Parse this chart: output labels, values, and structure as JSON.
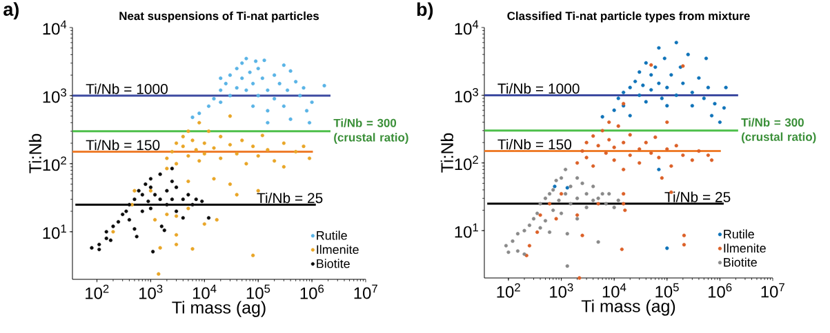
{
  "chart_data": [
    {
      "type": "scatter",
      "title": "Neat suspensions of Ti-nat particles",
      "xlabel": "Ti mass (ag)",
      "ylabel": "Ti:Nb",
      "annotations": [
        "a)"
      ],
      "log": "xy",
      "legend": "bottom right",
      "xlim": [
        35,
        10000000
      ],
      "ylim": [
        2,
        10000
      ],
      "xticks": [
        {
          "value": 100,
          "label": "10$^{2}$"
        },
        {
          "value": 1000,
          "label": "10$^{3}$"
        },
        {
          "value": 10000,
          "label": "10$^{4}$"
        },
        {
          "value": 100000,
          "label": "10$^{5}$"
        },
        {
          "value": 1000000,
          "label": "10$^{6}$"
        },
        {
          "value": 10000000,
          "label": "10$^{7}$"
        }
      ],
      "yticks": [
        {
          "value": 10,
          "label": "10$^{1}$"
        },
        {
          "value": 100,
          "label": "10$^{2}$"
        },
        {
          "value": 1000,
          "label": "10$^{3}$"
        },
        {
          "value": 10000,
          "label": "10$^{4}$"
        }
      ],
      "ref_lines": [
        {
          "axis": "y",
          "value": 1000,
          "label": "Ti/Nb = 1000",
          "color": "#3c4aa0"
        },
        {
          "axis": "y",
          "value": 300,
          "label": "Ti/Nb = 300 (crustal ratio)",
          "color": "#4dbf4a"
        },
        {
          "axis": "y",
          "value": 150,
          "label": "Ti/Nb = 150",
          "color": "#ee7d2c"
        },
        {
          "axis": "y",
          "value": 25,
          "label": "Ti/Nb = 25",
          "color": "#000000"
        }
      ],
      "series": [
        {
          "name": "Rutile",
          "color": "#5ab4e6",
          "x": [
            12000,
            15000,
            20000,
            20000,
            25000,
            30000,
            30000,
            40000,
            40000,
            50000,
            50000,
            60000,
            60000,
            70000,
            80000,
            80000,
            90000,
            100000,
            100000,
            120000,
            130000,
            150000,
            150000,
            200000,
            200000,
            250000,
            300000,
            300000,
            350000,
            400000,
            400000,
            500000,
            600000,
            700000,
            800000,
            900000,
            1000000,
            1700000,
            8000,
            6000,
            150000,
            20000
          ],
          "values": [
            700,
            900,
            1200,
            800,
            1500,
            1000,
            2000,
            1300,
            2500,
            1800,
            3000,
            3500,
            1200,
            2200,
            1500,
            700,
            3200,
            1000,
            2500,
            1800,
            3300,
            1200,
            600,
            2000,
            900,
            1500,
            2800,
            700,
            1200,
            2300,
            450,
            1600,
            1000,
            1300,
            600,
            400,
            800,
            1400,
            550,
            480,
            400,
            1800
          ]
        },
        {
          "name": "Ilmenite",
          "color": "#e9a628",
          "x": [
            2000,
            2500,
            3000,
            3000,
            4000,
            4000,
            5000,
            5000,
            6000,
            7000,
            8000,
            8000,
            10000,
            10000,
            12000,
            15000,
            20000,
            20000,
            30000,
            30000,
            40000,
            50000,
            60000,
            80000,
            100000,
            120000,
            150000,
            200000,
            300000,
            300000,
            500000,
            700000,
            900000,
            15000,
            30000,
            100000,
            40000,
            5000,
            2000,
            1000,
            500,
            1200,
            2000,
            3000,
            5000,
            10000,
            17000,
            3000,
            3000,
            1500,
            6000,
            80000,
            1400,
            200,
            450
          ],
          "values": [
            120,
            150,
            200,
            100,
            180,
            250,
            130,
            300,
            220,
            160,
            400,
            110,
            200,
            140,
            300,
            170,
            120,
            250,
            190,
            500,
            140,
            220,
            100,
            180,
            130,
            260,
            160,
            110,
            200,
            90,
            150,
            180,
            120,
            60,
            50,
            40,
            35,
            55,
            85,
            40,
            40,
            15,
            18,
            17,
            22,
            13,
            15,
            9,
            6.5,
            5.8,
            5.6,
            4.5,
            2.4,
            10,
            25
          ]
        },
        {
          "name": "Biotite",
          "color": "#0d0d0d",
          "x": [
            80,
            110,
            110,
            150,
            150,
            180,
            200,
            250,
            300,
            350,
            400,
            400,
            500,
            500,
            550,
            600,
            700,
            700,
            800,
            900,
            1000,
            1000,
            1000,
            1100,
            1200,
            1500,
            1500,
            1600,
            2000,
            2000,
            2500,
            2500,
            3000,
            3000,
            4000,
            4000,
            5000,
            6000,
            7000,
            9000,
            12000,
            2500,
            1800
          ],
          "values": [
            5.8,
            5.5,
            6.5,
            8,
            10,
            7.5,
            12,
            14,
            18,
            20,
            25,
            15,
            30,
            11,
            8.5,
            40,
            35,
            20,
            50,
            28,
            60,
            45,
            22,
            5.1,
            35,
            30,
            70,
            12,
            25,
            40,
            55,
            30,
            20,
            45,
            30,
            16,
            35,
            25,
            30,
            28,
            16,
            85,
            10.5
          ]
        }
      ]
    },
    {
      "type": "scatter",
      "title": "Classified Ti-nat particle types from mixture",
      "xlabel": "Ti mass (ag)",
      "ylabel": "Ti:Nb",
      "annotations": [
        "b)"
      ],
      "log": "xy",
      "legend": "bottom right",
      "xlim": [
        35,
        10000000
      ],
      "ylim": [
        2,
        10000
      ],
      "xticks": [
        {
          "value": 100,
          "label": "10$^{2}$"
        },
        {
          "value": 1000,
          "label": "10$^{3}$"
        },
        {
          "value": 10000,
          "label": "10$^{4}$"
        },
        {
          "value": 100000,
          "label": "10$^{5}$"
        },
        {
          "value": 1000000,
          "label": "10$^{6}$"
        },
        {
          "value": 10000000,
          "label": "10$^{7}$"
        }
      ],
      "yticks": [
        {
          "value": 10,
          "label": "10$^{1}$"
        },
        {
          "value": 100,
          "label": "10$^{2}$"
        },
        {
          "value": 1000,
          "label": "10$^{3}$"
        },
        {
          "value": 10000,
          "label": "10$^{4}$"
        }
      ],
      "ref_lines": [
        {
          "axis": "y",
          "value": 1000,
          "label": "Ti/Nb = 1000",
          "color": "#3c4aa0"
        },
        {
          "axis": "y",
          "value": 300,
          "label": "Ti/Nb = 300 (crustal ratio)",
          "color": "#4dbf4a"
        },
        {
          "axis": "y",
          "value": 150,
          "label": "Ti/Nb = 150",
          "color": "#ee7d2c"
        },
        {
          "axis": "y",
          "value": 25,
          "label": "Ti/Nb = 25",
          "color": "#000000"
        }
      ],
      "series": [
        {
          "name": "Rutile",
          "color": "#1073b9",
          "x": [
            10000,
            12000,
            15000,
            15000,
            20000,
            20000,
            25000,
            30000,
            30000,
            35000,
            40000,
            40000,
            50000,
            50000,
            60000,
            70000,
            70000,
            80000,
            90000,
            100000,
            100000,
            120000,
            150000,
            150000,
            180000,
            200000,
            250000,
            300000,
            300000,
            400000,
            500000,
            550000,
            600000,
            700000,
            800000,
            1000000,
            1300000,
            1200000,
            100000,
            750,
            1300,
            70000,
            6000
          ],
          "values": [
            600,
            900,
            1100,
            700,
            1300,
            500,
            1600,
            1000,
            2200,
            1400,
            3000,
            800,
            2000,
            1200,
            2600,
            5000,
            1500,
            900,
            3500,
            1300,
            700,
            2000,
            6000,
            1000,
            2600,
            1500,
            4000,
            1100,
            700,
            1800,
            900,
            3500,
            1300,
            500,
            750,
            400,
            1300,
            650,
            5.5,
            45,
            43,
            80,
            480
          ]
        },
        {
          "name": "Ilmenite",
          "color": "#dc6128",
          "x": [
            2000,
            2500,
            3000,
            3000,
            4000,
            4000,
            5000,
            6000,
            7000,
            8000,
            8000,
            10000,
            10000,
            12000,
            15000,
            15000,
            20000,
            20000,
            30000,
            30000,
            40000,
            50000,
            60000,
            70000,
            80000,
            100000,
            120000,
            150000,
            200000,
            300000,
            400000,
            600000,
            700000,
            50000,
            15000,
            200000,
            100000,
            120000,
            15000,
            16000,
            15000,
            5000,
            2000,
            800,
            600,
            400,
            350,
            250,
            220,
            2500,
            14000,
            210000,
            210000,
            2200,
            1000
          ],
          "values": [
            100,
            150,
            200,
            120,
            250,
            90,
            180,
            300,
            140,
            400,
            220,
            170,
            110,
            350,
            200,
            80,
            130,
            260,
            160,
            100,
            200,
            140,
            240,
            120,
            60,
            160,
            90,
            180,
            130,
            110,
            150,
            130,
            110,
            2800,
            750,
            2700,
            400,
            37,
            35,
            20,
            25,
            25,
            17,
            15,
            25,
            17,
            9.5,
            6,
            4.3,
            8.5,
            5.3,
            8.5,
            6.2,
            2,
            35
          ]
        },
        {
          "name": "Biotite",
          "color": "#8a8a8a",
          "x": [
            90,
            100,
            120,
            150,
            150,
            200,
            200,
            250,
            300,
            350,
            400,
            400,
            500,
            500,
            600,
            700,
            700,
            800,
            900,
            1000,
            1000,
            1200,
            1200,
            1300,
            1300,
            1500,
            1500,
            2000,
            2000,
            2000,
            2500,
            3000,
            3000,
            4000,
            4000,
            5000,
            5000,
            6000,
            7000,
            8000,
            10000,
            12000,
            600
          ],
          "values": [
            6,
            4.8,
            7,
            9,
            5,
            10,
            4.5,
            12,
            15,
            18,
            25,
            11,
            30,
            14,
            35,
            40,
            20,
            55,
            28,
            60,
            18,
            80,
            35,
            9,
            3,
            45,
            25,
            60,
            30,
            15,
            50,
            35,
            22,
            45,
            28,
            6.8,
            30,
            35,
            25,
            35,
            22,
            28,
            9.5
          ]
        }
      ]
    }
  ]
}
